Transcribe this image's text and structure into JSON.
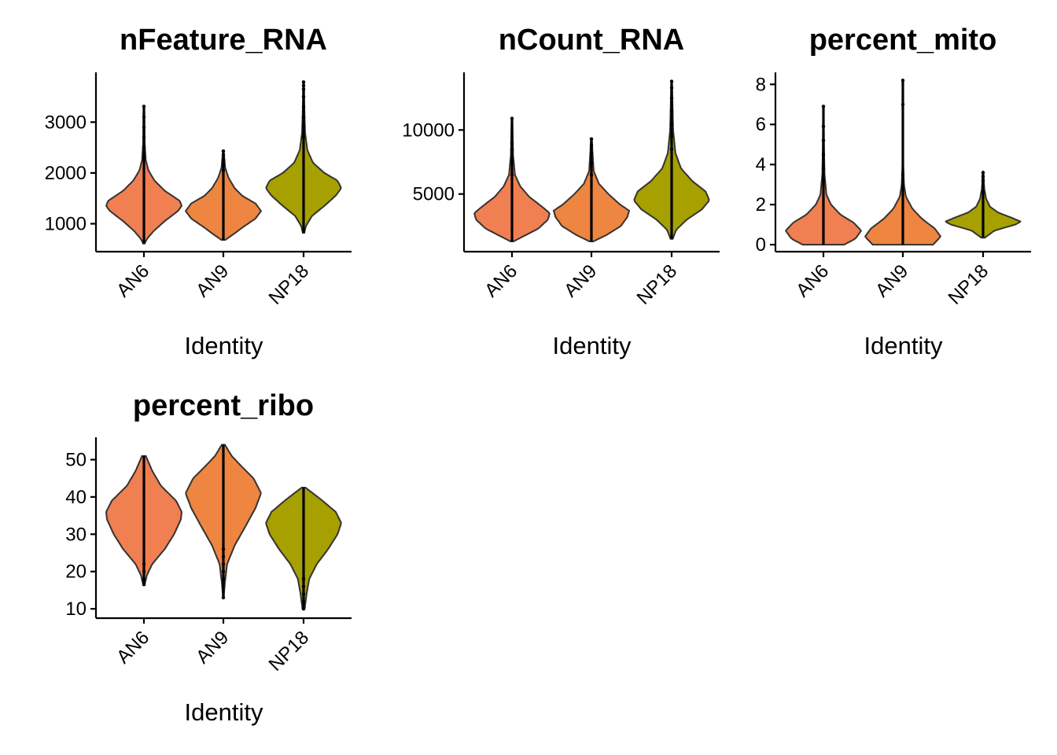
{
  "chart_data": [
    {
      "type": "violin",
      "title": "nFeature_RNA",
      "xlabel": "Identity",
      "ylabel": "",
      "categories": [
        "AN6",
        "AN9",
        "NP18"
      ],
      "colors": [
        "#F07F52",
        "#EE8540",
        "#A6A000"
      ],
      "yticks": [
        1000,
        2000,
        3000
      ],
      "tick_labels": [
        "1000",
        "2000",
        "3000"
      ],
      "ylim": [
        450,
        3980
      ],
      "series": [
        {
          "min": 610,
          "max": 3310,
          "density": [
            [
              610,
              0.02
            ],
            [
              700,
              0.08
            ],
            [
              850,
              0.25
            ],
            [
              1050,
              0.55
            ],
            [
              1250,
              0.9
            ],
            [
              1350,
              1.0
            ],
            [
              1450,
              0.95
            ],
            [
              1650,
              0.55
            ],
            [
              1850,
              0.28
            ],
            [
              2050,
              0.12
            ],
            [
              2250,
              0.05
            ],
            [
              2600,
              0.02
            ],
            [
              3310,
              0.01
            ]
          ],
          "outliers": [
            2300,
            2500,
            2700,
            2900,
            3100,
            3310
          ]
        },
        {
          "min": 680,
          "max": 2430,
          "density": [
            [
              680,
              0.05
            ],
            [
              800,
              0.28
            ],
            [
              950,
              0.55
            ],
            [
              1100,
              0.85
            ],
            [
              1250,
              1.0
            ],
            [
              1400,
              0.85
            ],
            [
              1550,
              0.5
            ],
            [
              1700,
              0.3
            ],
            [
              1900,
              0.14
            ],
            [
              2100,
              0.05
            ],
            [
              2430,
              0.01
            ]
          ],
          "outliers": [
            2050,
            2150,
            2250,
            2350,
            2430
          ]
        },
        {
          "min": 820,
          "max": 3790,
          "density": [
            [
              820,
              0.02
            ],
            [
              950,
              0.06
            ],
            [
              1150,
              0.22
            ],
            [
              1350,
              0.55
            ],
            [
              1550,
              0.85
            ],
            [
              1700,
              1.0
            ],
            [
              1850,
              0.9
            ],
            [
              2000,
              0.55
            ],
            [
              2200,
              0.25
            ],
            [
              2450,
              0.1
            ],
            [
              2800,
              0.04
            ],
            [
              3300,
              0.02
            ],
            [
              3790,
              0.01
            ]
          ],
          "outliers": [
            2700,
            2900,
            3100,
            3300,
            3500,
            3650,
            3720,
            3790
          ]
        }
      ]
    },
    {
      "type": "violin",
      "title": "nCount_RNA",
      "xlabel": "Identity",
      "ylabel": "",
      "categories": [
        "AN6",
        "AN9",
        "NP18"
      ],
      "colors": [
        "#F07F52",
        "#EE8540",
        "#A6A000"
      ],
      "yticks": [
        5000,
        10000
      ],
      "tick_labels": [
        "5000",
        "10000"
      ],
      "ylim": [
        500,
        14500
      ],
      "series": [
        {
          "min": 1300,
          "max": 10900,
          "density": [
            [
              1300,
              0.04
            ],
            [
              1700,
              0.3
            ],
            [
              2300,
              0.7
            ],
            [
              3000,
              0.95
            ],
            [
              3500,
              1.0
            ],
            [
              4000,
              0.8
            ],
            [
              4800,
              0.45
            ],
            [
              5600,
              0.22
            ],
            [
              6500,
              0.08
            ],
            [
              8000,
              0.03
            ],
            [
              10900,
              0.01
            ]
          ],
          "outliers": [
            6500,
            7500,
            8500,
            9000,
            10900
          ]
        },
        {
          "min": 1300,
          "max": 9300,
          "density": [
            [
              1300,
              0.05
            ],
            [
              1800,
              0.4
            ],
            [
              2500,
              0.78
            ],
            [
              3200,
              0.95
            ],
            [
              3700,
              1.0
            ],
            [
              4200,
              0.75
            ],
            [
              5000,
              0.45
            ],
            [
              5800,
              0.2
            ],
            [
              6800,
              0.06
            ],
            [
              9300,
              0.01
            ]
          ],
          "outliers": [
            6500,
            7400,
            8200,
            8800,
            9300
          ]
        },
        {
          "min": 1500,
          "max": 13800,
          "density": [
            [
              1500,
              0.03
            ],
            [
              2200,
              0.12
            ],
            [
              3000,
              0.4
            ],
            [
              3800,
              0.8
            ],
            [
              4500,
              1.0
            ],
            [
              5200,
              0.9
            ],
            [
              6000,
              0.55
            ],
            [
              7000,
              0.25
            ],
            [
              8200,
              0.1
            ],
            [
              10000,
              0.04
            ],
            [
              13800,
              0.01
            ]
          ],
          "outliers": [
            8500,
            9500,
            10500,
            11500,
            12500,
            13300,
            13800
          ]
        }
      ]
    },
    {
      "type": "violin",
      "title": "percent_mito",
      "xlabel": "Identity",
      "ylabel": "",
      "categories": [
        "AN6",
        "AN9",
        "NP18"
      ],
      "colors": [
        "#F07F52",
        "#EE8540",
        "#A6A000"
      ],
      "yticks": [
        0,
        2,
        4,
        6,
        8
      ],
      "tick_labels": [
        "0",
        "2",
        "4",
        "6",
        "8"
      ],
      "ylim": [
        -0.35,
        8.6
      ],
      "series": [
        {
          "min": 0,
          "max": 6.9,
          "density": [
            [
              0,
              0.55
            ],
            [
              0.3,
              0.85
            ],
            [
              0.7,
              1.0
            ],
            [
              1.1,
              0.8
            ],
            [
              1.5,
              0.45
            ],
            [
              2.0,
              0.2
            ],
            [
              2.5,
              0.08
            ],
            [
              3.5,
              0.03
            ],
            [
              5.0,
              0.015
            ],
            [
              6.9,
              0.005
            ]
          ],
          "outliers": [
            3.2,
            3.8,
            4.5,
            5.2,
            5.9,
            6.9
          ]
        },
        {
          "min": 0,
          "max": 8.2,
          "density": [
            [
              0,
              0.8
            ],
            [
              0.4,
              1.0
            ],
            [
              0.8,
              0.85
            ],
            [
              1.3,
              0.5
            ],
            [
              1.8,
              0.25
            ],
            [
              2.4,
              0.08
            ],
            [
              3.0,
              0.03
            ],
            [
              4.0,
              0.01
            ],
            [
              6.0,
              0.005
            ],
            [
              8.2,
              0.003
            ]
          ],
          "outliers": [
            3.0,
            3.5,
            7.0,
            8.2
          ]
        },
        {
          "min": 0.35,
          "max": 3.6,
          "density": [
            [
              0.35,
              0.05
            ],
            [
              0.7,
              0.3
            ],
            [
              1.0,
              0.85
            ],
            [
              1.15,
              1.0
            ],
            [
              1.35,
              0.75
            ],
            [
              1.6,
              0.4
            ],
            [
              1.9,
              0.18
            ],
            [
              2.3,
              0.08
            ],
            [
              2.8,
              0.03
            ],
            [
              3.6,
              0.01
            ]
          ],
          "outliers": [
            2.6,
            2.9,
            3.2,
            3.4,
            3.6
          ]
        }
      ]
    },
    {
      "type": "violin",
      "title": "percent_ribo",
      "xlabel": "Identity",
      "ylabel": "",
      "categories": [
        "AN6",
        "AN9",
        "NP18"
      ],
      "colors": [
        "#F07F52",
        "#EE8540",
        "#A6A000"
      ],
      "yticks": [
        10,
        20,
        30,
        40,
        50
      ],
      "tick_labels": [
        "10",
        "20",
        "30",
        "40",
        "50"
      ],
      "ylim": [
        7.5,
        56
      ],
      "series": [
        {
          "min": 16.5,
          "max": 51,
          "density": [
            [
              16.5,
              0.02
            ],
            [
              19,
              0.08
            ],
            [
              22,
              0.22
            ],
            [
              26,
              0.55
            ],
            [
              30,
              0.8
            ],
            [
              34,
              0.98
            ],
            [
              36,
              1.0
            ],
            [
              39,
              0.85
            ],
            [
              43,
              0.45
            ],
            [
              47,
              0.22
            ],
            [
              51,
              0.05
            ]
          ],
          "outliers": [
            16.5,
            18,
            20,
            22
          ]
        },
        {
          "min": 13,
          "max": 54,
          "density": [
            [
              13,
              0.01
            ],
            [
              17,
              0.04
            ],
            [
              22,
              0.1
            ],
            [
              27,
              0.3
            ],
            [
              32,
              0.58
            ],
            [
              37,
              0.85
            ],
            [
              41,
              1.0
            ],
            [
              45,
              0.8
            ],
            [
              48,
              0.5
            ],
            [
              51,
              0.22
            ],
            [
              54,
              0.04
            ]
          ],
          "outliers": [
            13,
            18,
            20,
            22,
            24,
            26
          ]
        },
        {
          "min": 10,
          "max": 42.5,
          "density": [
            [
              10,
              0.03
            ],
            [
              14,
              0.08
            ],
            [
              18,
              0.15
            ],
            [
              22,
              0.35
            ],
            [
              26,
              0.65
            ],
            [
              30,
              0.9
            ],
            [
              33,
              1.0
            ],
            [
              36,
              0.85
            ],
            [
              39,
              0.5
            ],
            [
              41.5,
              0.18
            ],
            [
              42.5,
              0.05
            ]
          ],
          "outliers": [
            10,
            12,
            14,
            16,
            18
          ]
        }
      ]
    }
  ]
}
